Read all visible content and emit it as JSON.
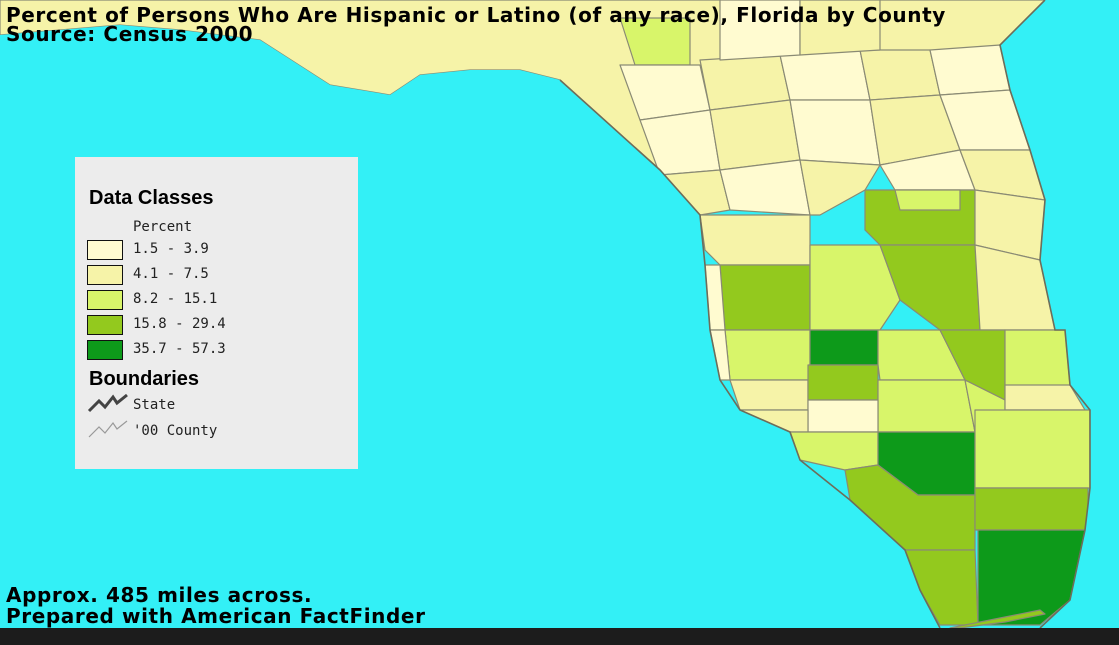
{
  "map": {
    "title": "Percent of Persons Who Are Hispanic or Latino (of any race), Florida by County",
    "source": "Source: Census 2000",
    "scale_note": "Approx. 485 miles across.",
    "credit": "Prepared with American FactFinder",
    "colors": {
      "water": "#33f0f6",
      "county_border": "#8a8a74",
      "class1": "#fffbd0",
      "class2": "#f6f3a8",
      "class3": "#d8f56a",
      "class4": "#93c91e",
      "class5": "#0d9a1a"
    }
  },
  "legend": {
    "heading": "Data Classes",
    "subheading": "Percent",
    "classes": [
      {
        "label": "1.5 - 3.9",
        "color": "#fffbd0"
      },
      {
        "label": "4.1 - 7.5",
        "color": "#f6f3a8"
      },
      {
        "label": "8.2 - 15.1",
        "color": "#d8f56a"
      },
      {
        "label": "15.8 - 29.4",
        "color": "#93c91e"
      },
      {
        "label": "35.7 - 57.3",
        "color": "#0d9a1a"
      }
    ],
    "boundaries_heading": "Boundaries",
    "boundaries": [
      {
        "label": "State",
        "icon": "state-boundary-icon"
      },
      {
        "label": "'00 County",
        "icon": "county-boundary-icon"
      }
    ]
  }
}
